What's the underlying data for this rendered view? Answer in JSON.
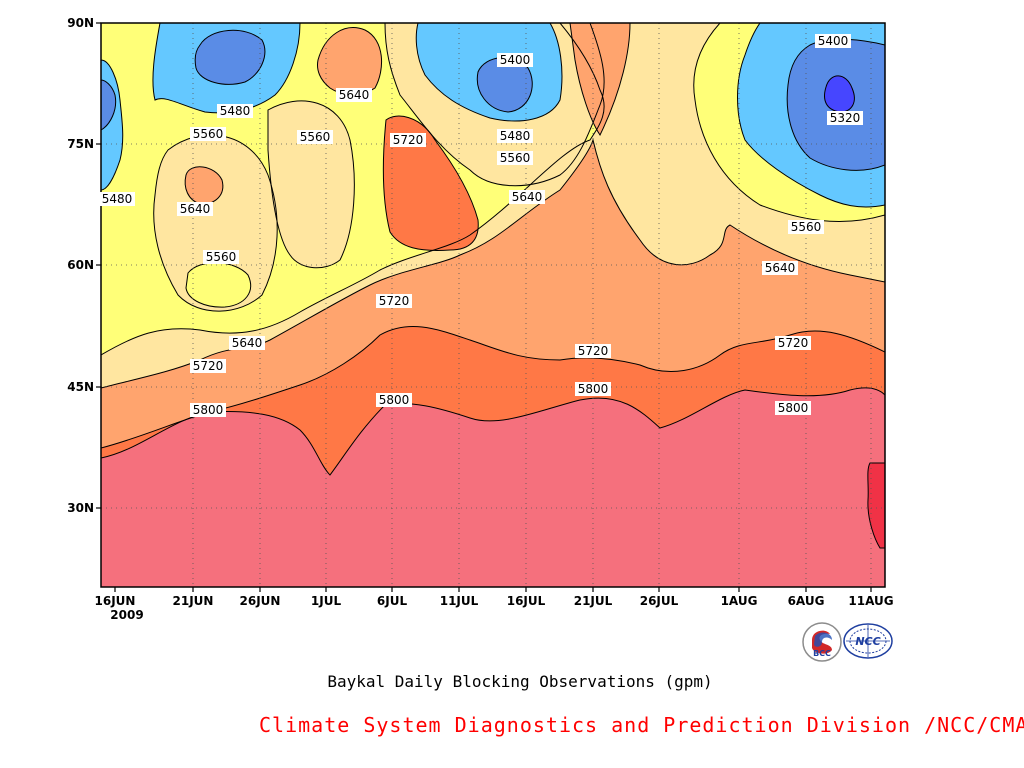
{
  "chart_data": {
    "type": "heatmap",
    "title": "Baykal Daily Blocking Observations (gpm)",
    "x_ticks": [
      "16JUN",
      "21JUN",
      "26JUN",
      "1JUL",
      "6JUL",
      "11JUL",
      "16JUL",
      "21JUL",
      "26JUL",
      "1AUG",
      "6AUG",
      "11AUG"
    ],
    "x_year_label": "2009",
    "y_ticks": [
      "30N",
      "45N",
      "60N",
      "75N",
      "90N"
    ],
    "xlim": [
      "2009-06-16",
      "2009-08-11"
    ],
    "ylim_deg": [
      20,
      90
    ],
    "grid": true,
    "contour_levels": [
      5320,
      5400,
      5480,
      5560,
      5640,
      5720,
      5800,
      5880
    ],
    "contour_labels": [
      "5480",
      "5480",
      "5560",
      "5640",
      "5560",
      "5640",
      "5720",
      "5800",
      "5560",
      "5640",
      "5720",
      "5720",
      "5800",
      "5640",
      "5400",
      "5480",
      "5560",
      "5640",
      "5720",
      "5800",
      "5400",
      "5320",
      "5560",
      "5640",
      "5720",
      "5800"
    ],
    "fill_colors": {
      "lt5320": "#4646ff",
      "5320_5400": "#5a8ce6",
      "5400_5480": "#64c8ff",
      "5480_5560": "#ffff78",
      "5560_5640": "#ffe6a0",
      "5640_5720": "#ffa46e",
      "5720_5800": "#ff7846",
      "5800_5880": "#f5707d",
      "gt5880": "#f03246"
    }
  },
  "caption": "Baykal Daily Blocking Observations (gpm)",
  "credit": "Climate System Diagnostics and Prediction Division /NCC/CMA",
  "logos": [
    {
      "name": "BCC",
      "text": "BCC",
      "color": "#1f3fa0"
    },
    {
      "name": "NCC",
      "text": "NCC",
      "color": "#1f3fa0"
    }
  ]
}
